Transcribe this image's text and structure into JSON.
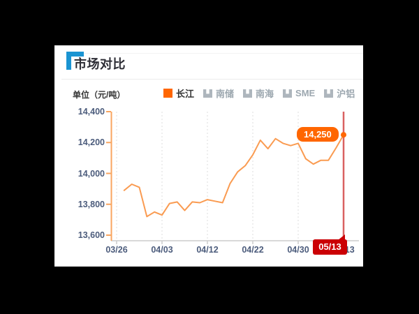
{
  "window": {
    "background": "#000000",
    "card_background": "#ffffff"
  },
  "header": {
    "title": "市场对比",
    "accent_color": "#1a94d2"
  },
  "unit_label": "单位（元/吨）",
  "legend": {
    "items": [
      {
        "label": "长江",
        "active": true,
        "color": "#ff6600"
      },
      {
        "label": "南储",
        "active": false,
        "color": "#aeb6bd"
      },
      {
        "label": "南海",
        "active": false,
        "color": "#aeb6bd"
      },
      {
        "label": "SME",
        "active": false,
        "color": "#aeb6bd"
      },
      {
        "label": "沪铝",
        "active": false,
        "color": "#aeb6bd"
      }
    ]
  },
  "tooltip": {
    "value": "14,250"
  },
  "marker": {
    "date": "05/13",
    "badge_color": "#cb0005",
    "line_color": "#d96161"
  },
  "chart_data": {
    "type": "line",
    "title": "市场对比",
    "ylabel": "元/吨",
    "xlabel": "",
    "ylim": [
      13600,
      14400
    ],
    "grid": "vertical-dotted",
    "legend_position": "top",
    "y_tick_labels": [
      "14,400",
      "14,200",
      "14,000",
      "13,800",
      "13,600"
    ],
    "y_tick_values": [
      14400,
      14200,
      14000,
      13800,
      13600
    ],
    "x_tick_labels": [
      "03/26",
      "04/03",
      "04/12",
      "04/22",
      "04/30",
      "05/13"
    ],
    "series": [
      {
        "name": "长江",
        "color": "#fa9b51",
        "values": [
          13890,
          13930,
          13910,
          13720,
          13750,
          13730,
          13805,
          13815,
          13760,
          13815,
          13810,
          13830,
          13820,
          13810,
          13935,
          14010,
          14050,
          14120,
          14215,
          14160,
          14225,
          14195,
          14180,
          14195,
          14095,
          14060,
          14085,
          14085,
          14165,
          14250
        ]
      }
    ],
    "last_point": {
      "date": "05/13",
      "value": 14250
    }
  }
}
